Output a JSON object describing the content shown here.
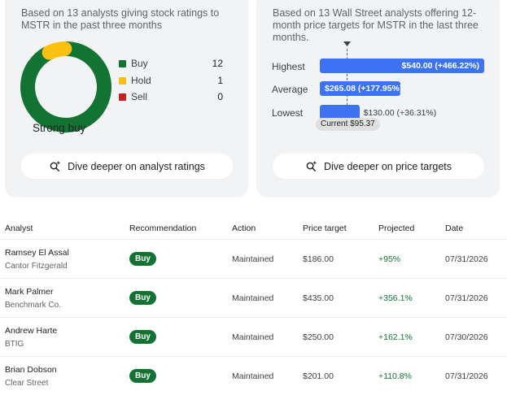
{
  "ratings": {
    "description": "Based on 13 analysts giving stock ratings to MSTR in the past three months",
    "consensus": "Strong buy",
    "legend": [
      {
        "label": "Buy",
        "count": 12,
        "color": "#137333"
      },
      {
        "label": "Hold",
        "count": 1,
        "color": "#f9c00f"
      },
      {
        "label": "Sell",
        "count": 0,
        "color": "#c5221f"
      }
    ],
    "dive_deeper": "Dive deeper on analyst ratings",
    "dive_icon": "sparkle-search-icon"
  },
  "price_targets": {
    "description": "Based on 13 Wall Street analysts offering 12-month price targets for MSTR in the last three months.",
    "rows": [
      {
        "label": "Highest",
        "value": "$540.00 (+466.22%)",
        "price": 540.0
      },
      {
        "label": "Average",
        "value": "$265.08 (+177.95%)",
        "price": 265.08
      },
      {
        "label": "Lowest",
        "value": "$130.00 (+36.31%)",
        "price": 130.0
      }
    ],
    "current": "Current $95.37",
    "current_price": 95.37,
    "accent": "#3d73f2",
    "dive_deeper": "Dive deeper on price targets",
    "dive_icon": "sparkle-search-icon"
  },
  "table": {
    "headers": [
      "Analyst",
      "Recommendation",
      "Action",
      "Price target",
      "Projected",
      "Date"
    ],
    "rows": [
      {
        "analyst": "Ramsey El Assal",
        "firm": "Cantor Fitzgerald",
        "recommendation": "Buy",
        "action": "Maintained",
        "price_target": "$186.00",
        "projected": "+95%",
        "date": "07/31/2026"
      },
      {
        "analyst": "Mark Palmer",
        "firm": "Benchmark Co.",
        "recommendation": "Buy",
        "action": "Maintained",
        "price_target": "$435.00",
        "projected": "+356.1%",
        "date": "07/31/2026"
      },
      {
        "analyst": "Andrew Harte",
        "firm": "BTIG",
        "recommendation": "Buy",
        "action": "Maintained",
        "price_target": "$250.00",
        "projected": "+162.1%",
        "date": "07/30/2026"
      },
      {
        "analyst": "Brian Dobson",
        "firm": "Clear Street",
        "recommendation": "Buy",
        "action": "Maintained",
        "price_target": "$201.00",
        "projected": "+110.8%",
        "date": "07/31/2026"
      }
    ]
  }
}
